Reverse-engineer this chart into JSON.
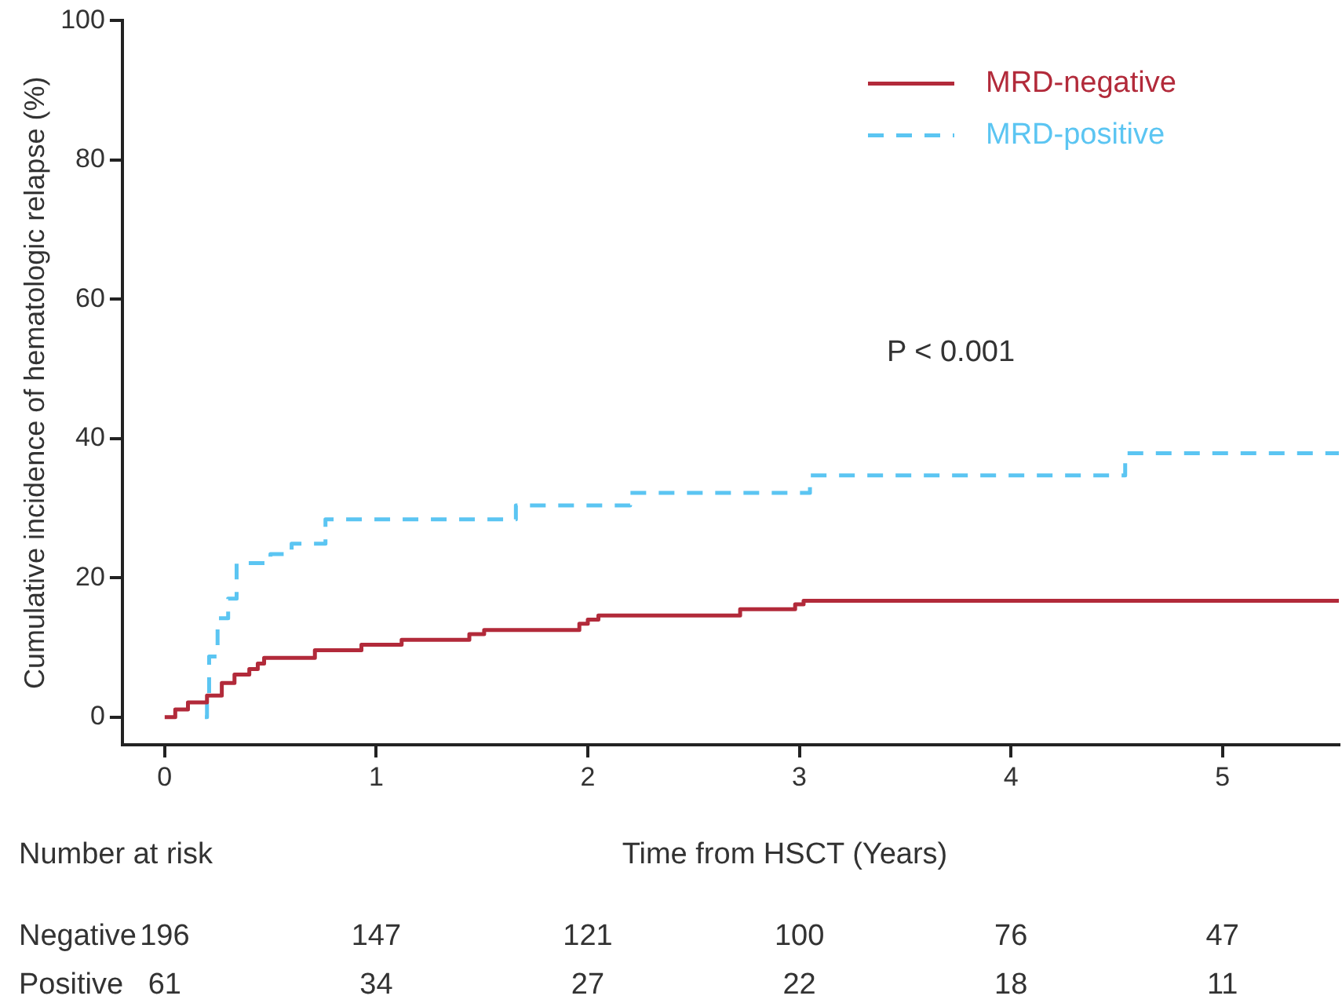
{
  "chart_data": {
    "type": "step",
    "xlabel": "Time from HSCT (Years)",
    "ylabel": "Cumulative incidence of hematologic relapse (%)",
    "xlim": [
      -0.2,
      5.55
    ],
    "xticks": [
      0,
      1,
      2,
      3,
      4,
      5
    ],
    "ylim": [
      -4,
      100
    ],
    "yticks": [
      0,
      20,
      40,
      60,
      80,
      100
    ],
    "grid": false,
    "legend": "top right",
    "marker": "none",
    "series": [
      {
        "name": "MRD-negative",
        "color": "#b22a3a",
        "line_style": "solid",
        "x": [
          0,
          0.05,
          0.11,
          0.2,
          0.27,
          0.33,
          0.4,
          0.44,
          0.47,
          0.71,
          0.93,
          1.12,
          1.44,
          1.51,
          1.96,
          2.0,
          2.05,
          2.72,
          2.98,
          3.02,
          5.55
        ],
        "values": [
          0,
          1.1,
          2.1,
          3.1,
          4.9,
          6.1,
          6.9,
          7.7,
          8.5,
          9.6,
          10.4,
          11.1,
          11.9,
          12.5,
          13.4,
          14.0,
          14.6,
          15.5,
          16.2,
          16.7,
          16.7
        ]
      },
      {
        "name": "MRD-positive",
        "color": "#5bc5f2",
        "line_style": "dashed",
        "x": [
          0.19,
          0.2,
          0.21,
          0.25,
          0.3,
          0.34,
          0.5,
          0.6,
          0.76,
          1.66,
          2.2,
          3.05,
          4.54,
          5.55
        ],
        "values": [
          0,
          3,
          8.7,
          14.2,
          17,
          22.1,
          23.4,
          24.9,
          28.4,
          30.4,
          32.2,
          34.7,
          37.9,
          37.9
        ]
      }
    ],
    "annotations": [
      "P < 0.001",
      "Number at risk",
      "Negative",
      "Positive",
      "196",
      "147",
      "121",
      "100",
      "76",
      "47",
      "61",
      "34",
      "27",
      "22",
      "18",
      "11"
    ]
  }
}
